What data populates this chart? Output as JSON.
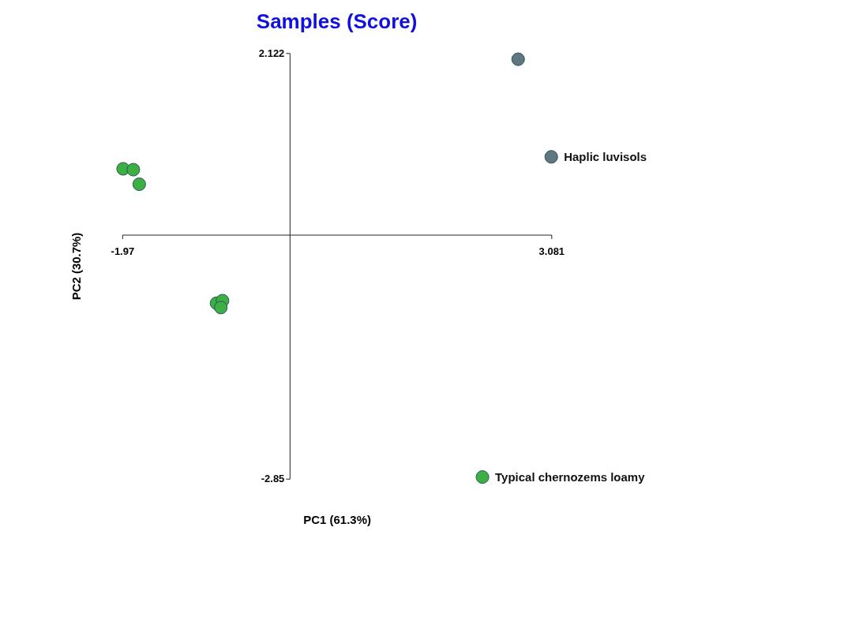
{
  "chart_data": {
    "type": "scatter",
    "title": "Samples (Score)",
    "xlabel": "PC1 (61.3%)",
    "ylabel": "PC2 (30.7%)",
    "xlim": [
      -1.97,
      3.081
    ],
    "xticks": [
      -1.97,
      3.081
    ],
    "ylim": [
      -2.85,
      2.122
    ],
    "yticks": [
      -2.85,
      2.122
    ],
    "grid": false,
    "legend": false,
    "marker": "circle",
    "series": [
      {
        "name": "Typical chernozems loamy",
        "color": "#3cb043",
        "x": [
          -1.96,
          -1.84,
          -1.77,
          -0.86,
          -0.79,
          -0.81,
          2.27
        ],
        "values": [
          0.77,
          0.76,
          0.59,
          -0.8,
          -0.77,
          -0.85,
          -2.83
        ]
      },
      {
        "name": "Haplic luvisols",
        "color": "#5f7880",
        "x": [
          2.69,
          3.08
        ],
        "values": [
          2.05,
          0.91
        ]
      }
    ]
  }
}
